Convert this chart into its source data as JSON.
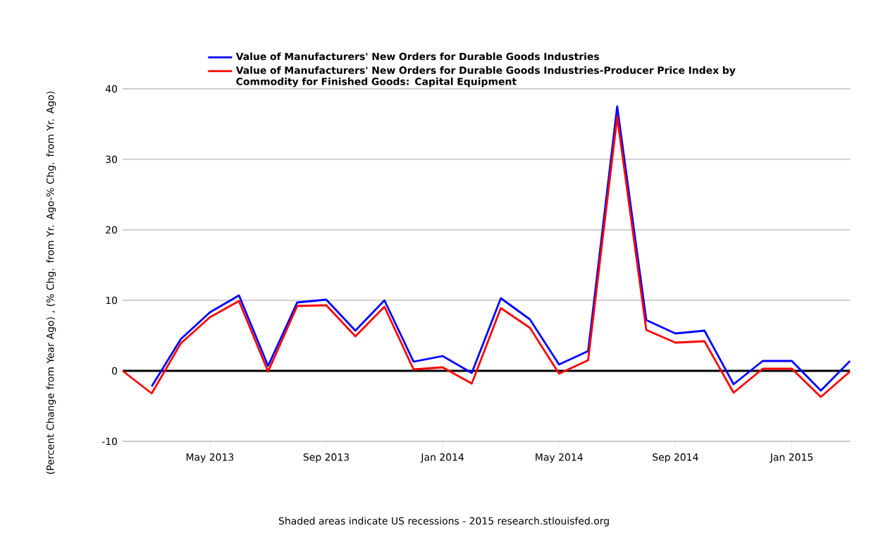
{
  "chart_data": {
    "type": "line",
    "ylabel": "(Percent Change from Year Ago) , (% Chg. from Yr. Ago-% Chg. from Yr. Ago)",
    "x": [
      "2013-02",
      "2013-03",
      "2013-04",
      "2013-05",
      "2013-06",
      "2013-07",
      "2013-08",
      "2013-09",
      "2013-10",
      "2013-11",
      "2013-12",
      "2014-01",
      "2014-02",
      "2014-03",
      "2014-04",
      "2014-05",
      "2014-06",
      "2014-07",
      "2014-08",
      "2014-09",
      "2014-10",
      "2014-11",
      "2014-12",
      "2015-01",
      "2015-02",
      "2015-03"
    ],
    "series": [
      {
        "name": "Value of Manufacturers' New Orders for Durable Goods Industries",
        "color": "#0000ff",
        "values": [
          null,
          -2.2,
          4.5,
          8.3,
          10.7,
          0.7,
          9.7,
          10.1,
          5.7,
          10.0,
          1.3,
          2.1,
          -0.3,
          10.3,
          7.3,
          0.9,
          2.8,
          37.5,
          7.2,
          5.3,
          5.7,
          -1.9,
          1.4,
          1.4,
          -2.8,
          1.4
        ]
      },
      {
        "name": "Value of Manufacturers' New Orders for Durable Goods Industries-Producer Price Index by Commodity for Finished Goods: Capital Equipment",
        "color": "#ff0000",
        "values": [
          0,
          -3.2,
          3.9,
          7.6,
          9.9,
          -0.1,
          9.2,
          9.3,
          4.9,
          9.1,
          0.2,
          0.5,
          -1.8,
          8.9,
          6.1,
          -0.4,
          1.5,
          36.0,
          5.8,
          4.0,
          4.2,
          -3.1,
          0.3,
          0.3,
          -3.7,
          -0.1
        ]
      }
    ],
    "xlim": [
      "2013-02",
      "2015-03"
    ],
    "xticks": [
      {
        "value": "2013-05",
        "label": "May 2013"
      },
      {
        "value": "2013-09",
        "label": "Sep 2013"
      },
      {
        "value": "2014-01",
        "label": "Jan 2014"
      },
      {
        "value": "2014-05",
        "label": "May 2014"
      },
      {
        "value": "2014-09",
        "label": "Sep 2014"
      },
      {
        "value": "2015-01",
        "label": "Jan 2015"
      }
    ],
    "ylim": [
      -10,
      40
    ],
    "yticks": [
      -10,
      0,
      10,
      20,
      30,
      40
    ],
    "grid": "y",
    "legend": "top",
    "marker": "none",
    "line_style": "solid",
    "ref_lines": [
      {
        "axis": "y",
        "value": 0,
        "color": "#000000"
      }
    ],
    "annotations": [
      "Shaded areas indicate US recessions - 2015 research.stlouisfed.org"
    ]
  }
}
